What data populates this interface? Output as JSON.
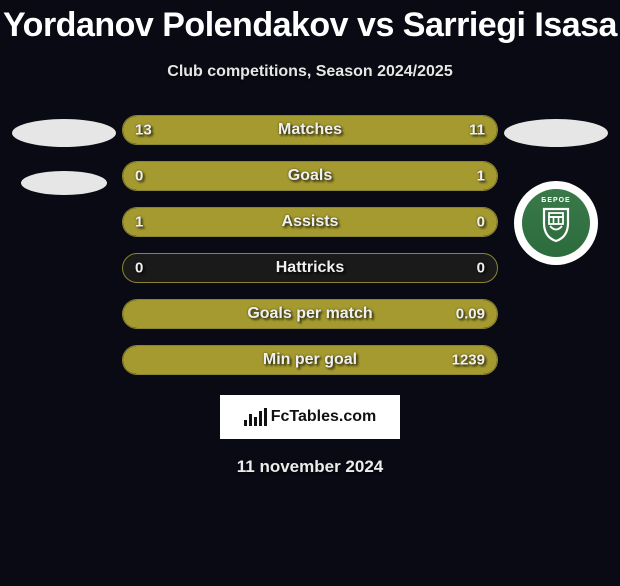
{
  "title": "Yordanov Polendakov vs Sarriegi Isasa",
  "subtitle": "Club competitions, Season 2024/2025",
  "footer_site": "FcTables.com",
  "footer_date": "11 november 2024",
  "colors": {
    "bar_fill": "#a49a2f",
    "bar_border": "#8b8430",
    "bar_bg": "#1a1a1a",
    "page_bg": "#0a0a14",
    "text": "#f0f0f0",
    "badge_green": "#2c6b3c"
  },
  "left_team": {
    "has_logo": false
  },
  "right_team": {
    "has_logo": true,
    "logo_text": "БЕРОЕ",
    "logo_bg": "#2c6b3c"
  },
  "stats": [
    {
      "label": "Matches",
      "left_val": "13",
      "right_val": "11",
      "left_pct": 54,
      "right_pct": 46
    },
    {
      "label": "Goals",
      "left_val": "0",
      "right_val": "1",
      "left_pct": 0,
      "right_pct": 100
    },
    {
      "label": "Assists",
      "left_val": "1",
      "right_val": "0",
      "left_pct": 100,
      "right_pct": 0
    },
    {
      "label": "Hattricks",
      "left_val": "0",
      "right_val": "0",
      "left_pct": 0,
      "right_pct": 0
    },
    {
      "label": "Goals per match",
      "left_val": "",
      "right_val": "0.09",
      "left_pct": 0,
      "right_pct": 100
    },
    {
      "label": "Min per goal",
      "left_val": "",
      "right_val": "1239",
      "left_pct": 0,
      "right_pct": 100
    }
  ]
}
